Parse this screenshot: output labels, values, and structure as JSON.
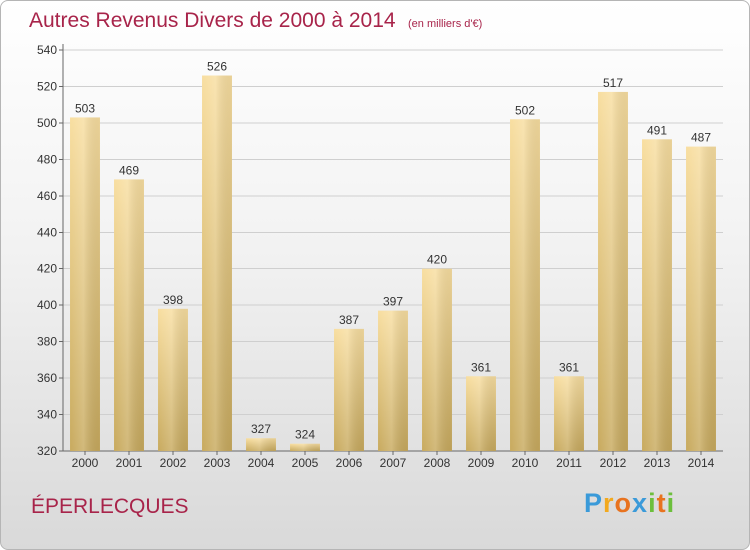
{
  "chart_data": {
    "type": "bar",
    "title": "Autres Revenus Divers de 2000 à 2014",
    "subtitle": "(en milliers d'€)",
    "categories": [
      "2000",
      "2001",
      "2002",
      "2003",
      "2004",
      "2005",
      "2006",
      "2007",
      "2008",
      "2009",
      "2010",
      "2011",
      "2012",
      "2013",
      "2014"
    ],
    "values": [
      503,
      469,
      398,
      526,
      327,
      324,
      387,
      397,
      420,
      361,
      502,
      361,
      517,
      491,
      487
    ],
    "ylim": [
      320,
      540
    ],
    "yticks": [
      320,
      340,
      360,
      380,
      400,
      420,
      440,
      460,
      480,
      500,
      520,
      540
    ],
    "grid": true,
    "xlabel": "",
    "ylabel": ""
  },
  "commune": "ÉPERLECQUES",
  "logo": {
    "letters": [
      {
        "ch": "P",
        "color": "#3a9ad9"
      },
      {
        "ch": "r",
        "color": "#f2a91e"
      },
      {
        "ch": "o",
        "color": "#e8731f"
      },
      {
        "ch": "x",
        "color": "#3a9ad9"
      },
      {
        "ch": "i",
        "color": "#6cbf3c"
      },
      {
        "ch": "t",
        "color": "#e8731f"
      },
      {
        "ch": "i",
        "color": "#6cbf3c"
      }
    ]
  },
  "colors": {
    "title": "#a8244a",
    "bar_top": "#f8dea0",
    "bar_bottom": "#c8aa5e"
  }
}
